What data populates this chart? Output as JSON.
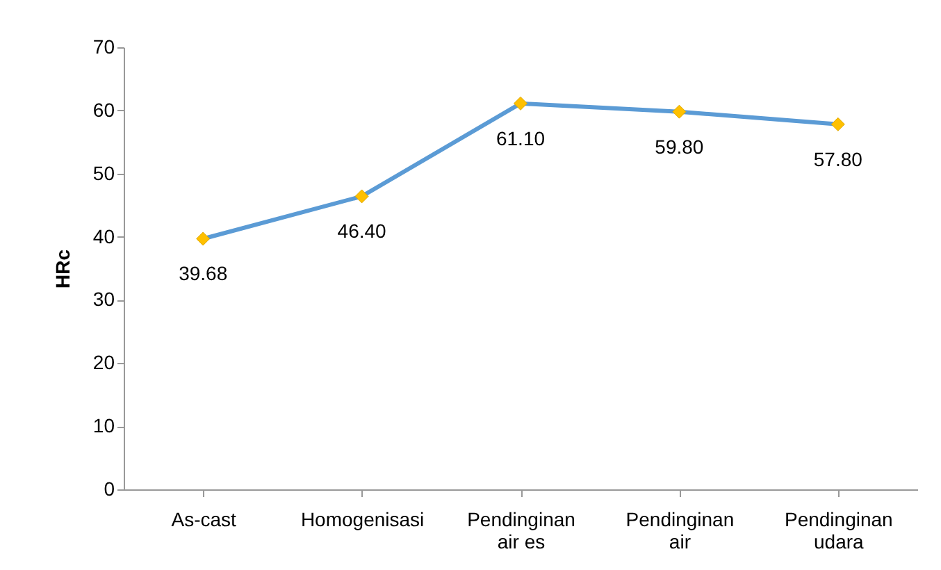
{
  "chart_data": {
    "type": "line",
    "ylabel": "HRc",
    "categories": [
      "As-cast",
      "Homogenisasi",
      "Pendinginan air es",
      "Pendinginan air",
      "Pendinginan udara"
    ],
    "series": [
      {
        "color": "#5b9bd5",
        "values": [
          39.68,
          46.4,
          61.1,
          59.8,
          57.8
        ]
      }
    ],
    "value_labels": [
      "39.68",
      "46.40",
      "61.10",
      "59.80",
      "57.80"
    ],
    "marker": "diamond",
    "ylim": [
      0,
      70
    ],
    "yticks": [
      0,
      10,
      20,
      30,
      40,
      50,
      60,
      70
    ],
    "grid": false
  }
}
